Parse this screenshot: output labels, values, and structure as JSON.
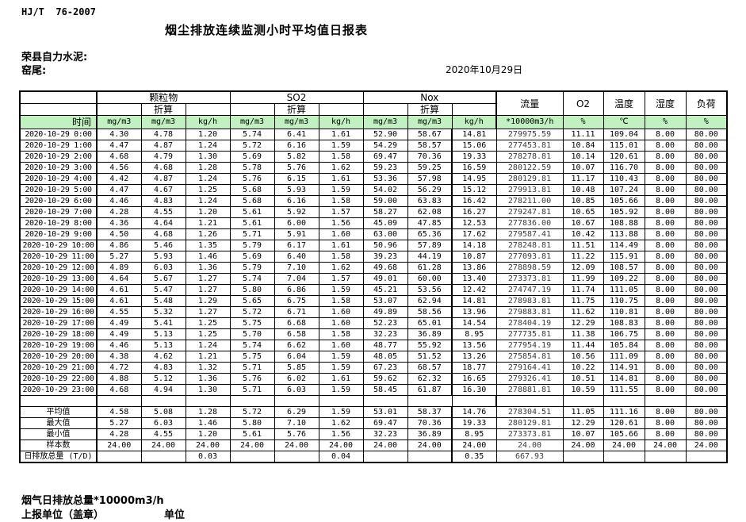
{
  "page": {
    "standard_code": "HJ/T  76-2007",
    "title": "烟尘排放连续监测小时平均值日报表",
    "company": "荣县自力水泥:",
    "location": "窑尾:",
    "date": "2020年10月29日"
  },
  "colors": {
    "header_green": "#c1f0c1",
    "border": "#000000"
  },
  "table": {
    "time_label": "时间",
    "converted_label": "折算",
    "groups": [
      {
        "label": "颗粒物"
      },
      {
        "label": "SO2"
      },
      {
        "label": "Nox"
      }
    ],
    "flow_label": "流量",
    "o2_label": "O2",
    "temp_label": "温度",
    "humidity_label": "湿度",
    "load_label": "负荷",
    "units": {
      "mgm3": "mg/m3",
      "kgh": "kg/h",
      "flow": "*10000m3/h",
      "percent": "%",
      "celsius": "℃"
    },
    "rows": [
      {
        "time": "2020-10-29  0:00",
        "values": [
          "4.30",
          "4.78",
          "1.20",
          "5.74",
          "6.41",
          "1.61",
          "52.90",
          "58.67",
          "14.81",
          "279975.59",
          "11.11",
          "109.04",
          "8.00",
          "80.00"
        ]
      },
      {
        "time": "2020-10-29  1:00",
        "values": [
          "4.47",
          "4.87",
          "1.24",
          "5.72",
          "6.16",
          "1.59",
          "54.29",
          "58.57",
          "15.06",
          "277453.81",
          "10.84",
          "115.01",
          "8.00",
          "80.00"
        ]
      },
      {
        "time": "2020-10-29  2:00",
        "values": [
          "4.68",
          "4.79",
          "1.30",
          "5.69",
          "5.82",
          "1.58",
          "69.47",
          "70.36",
          "19.33",
          "278278.81",
          "10.14",
          "120.61",
          "8.00",
          "80.00"
        ]
      },
      {
        "time": "2020-10-29  3:00",
        "values": [
          "4.56",
          "4.68",
          "1.28",
          "5.78",
          "5.76",
          "1.62",
          "59.23",
          "59.25",
          "16.59",
          "280122.59",
          "10.07",
          "116.70",
          "8.00",
          "80.00"
        ]
      },
      {
        "time": "2020-10-29  4:00",
        "values": [
          "4.42",
          "4.87",
          "1.24",
          "5.76",
          "6.15",
          "1.61",
          "53.36",
          "57.98",
          "14.95",
          "280129.81",
          "11.17",
          "110.43",
          "8.00",
          "80.00"
        ]
      },
      {
        "time": "2020-10-29  5:00",
        "values": [
          "4.47",
          "4.67",
          "1.25",
          "5.68",
          "5.93",
          "1.59",
          "54.02",
          "56.29",
          "15.12",
          "279913.81",
          "10.48",
          "107.24",
          "8.00",
          "80.00"
        ]
      },
      {
        "time": "2020-10-29  6:00",
        "values": [
          "4.46",
          "4.83",
          "1.24",
          "5.68",
          "6.16",
          "1.58",
          "59.00",
          "63.83",
          "16.42",
          "278211.00",
          "10.85",
          "105.66",
          "8.00",
          "80.00"
        ]
      },
      {
        "time": "2020-10-29  7:00",
        "values": [
          "4.28",
          "4.55",
          "1.20",
          "5.61",
          "5.92",
          "1.57",
          "58.27",
          "62.08",
          "16.27",
          "279247.81",
          "10.65",
          "105.92",
          "8.00",
          "80.00"
        ]
      },
      {
        "time": "2020-10-29  8:00",
        "values": [
          "4.36",
          "4.64",
          "1.21",
          "5.61",
          "6.00",
          "1.56",
          "45.09",
          "47.85",
          "12.53",
          "277836.00",
          "10.67",
          "108.88",
          "8.00",
          "80.00"
        ]
      },
      {
        "time": "2020-10-29  9:00",
        "values": [
          "4.50",
          "4.68",
          "1.26",
          "5.71",
          "5.91",
          "1.60",
          "63.00",
          "65.36",
          "17.62",
          "279587.41",
          "10.42",
          "113.88",
          "8.00",
          "80.00"
        ]
      },
      {
        "time": "2020-10-29 10:00",
        "values": [
          "4.86",
          "5.46",
          "1.35",
          "5.79",
          "6.17",
          "1.61",
          "50.96",
          "57.89",
          "14.18",
          "278248.81",
          "11.51",
          "114.49",
          "8.00",
          "80.00"
        ]
      },
      {
        "time": "2020-10-29 11:00",
        "values": [
          "5.27",
          "5.93",
          "1.46",
          "5.69",
          "6.40",
          "1.58",
          "39.23",
          "44.19",
          "10.87",
          "277093.81",
          "11.22",
          "115.91",
          "8.00",
          "80.00"
        ]
      },
      {
        "time": "2020-10-29 12:00",
        "values": [
          "4.89",
          "6.03",
          "1.36",
          "5.79",
          "7.10",
          "1.62",
          "49.68",
          "61.28",
          "13.86",
          "278898.59",
          "12.09",
          "108.57",
          "8.00",
          "80.00"
        ]
      },
      {
        "time": "2020-10-29 13:00",
        "values": [
          "4.64",
          "5.67",
          "1.27",
          "5.74",
          "7.04",
          "1.57",
          "49.01",
          "60.00",
          "13.40",
          "273373.81",
          "11.99",
          "109.22",
          "8.00",
          "80.00"
        ]
      },
      {
        "time": "2020-10-29 14:00",
        "values": [
          "4.61",
          "5.47",
          "1.27",
          "5.80",
          "6.86",
          "1.59",
          "45.21",
          "53.56",
          "12.42",
          "274747.19",
          "11.74",
          "111.05",
          "8.00",
          "80.00"
        ]
      },
      {
        "time": "2020-10-29 15:00",
        "values": [
          "4.61",
          "5.48",
          "1.29",
          "5.65",
          "6.75",
          "1.58",
          "53.07",
          "62.94",
          "14.81",
          "278983.81",
          "11.75",
          "110.75",
          "8.00",
          "80.00"
        ]
      },
      {
        "time": "2020-10-29 16:00",
        "values": [
          "4.55",
          "5.32",
          "1.27",
          "5.72",
          "6.71",
          "1.60",
          "49.89",
          "58.56",
          "13.96",
          "279883.81",
          "11.62",
          "110.81",
          "8.00",
          "80.00"
        ]
      },
      {
        "time": "2020-10-29 17:00",
        "values": [
          "4.49",
          "5.41",
          "1.25",
          "5.75",
          "6.68",
          "1.60",
          "52.23",
          "65.01",
          "14.54",
          "278404.19",
          "12.29",
          "108.83",
          "8.00",
          "80.00"
        ]
      },
      {
        "time": "2020-10-29 18:00",
        "values": [
          "4.49",
          "5.13",
          "1.25",
          "5.70",
          "6.58",
          "1.58",
          "32.23",
          "36.89",
          "8.95",
          "277735.81",
          "11.38",
          "106.75",
          "8.00",
          "80.00"
        ]
      },
      {
        "time": "2020-10-29 19:00",
        "values": [
          "4.46",
          "5.13",
          "1.24",
          "5.74",
          "6.62",
          "1.60",
          "48.77",
          "55.92",
          "13.56",
          "277954.19",
          "11.44",
          "105.84",
          "8.00",
          "80.00"
        ]
      },
      {
        "time": "2020-10-29 20:00",
        "values": [
          "4.38",
          "4.62",
          "1.21",
          "5.75",
          "6.04",
          "1.59",
          "48.05",
          "51.52",
          "13.26",
          "275854.81",
          "10.56",
          "111.09",
          "8.00",
          "80.00"
        ]
      },
      {
        "time": "2020-10-29 21:00",
        "values": [
          "4.72",
          "4.83",
          "1.32",
          "5.71",
          "5.85",
          "1.59",
          "67.23",
          "68.57",
          "18.77",
          "279164.41",
          "10.22",
          "114.91",
          "8.00",
          "80.00"
        ]
      },
      {
        "time": "2020-10-29 22:00",
        "values": [
          "4.88",
          "5.12",
          "1.36",
          "5.76",
          "6.02",
          "1.61",
          "59.62",
          "62.32",
          "16.65",
          "279326.41",
          "10.51",
          "114.81",
          "8.00",
          "80.00"
        ]
      },
      {
        "time": "2020-10-29 23:00",
        "values": [
          "4.68",
          "4.94",
          "1.30",
          "5.71",
          "6.03",
          "1.59",
          "58.45",
          "61.87",
          "16.30",
          "278881.81",
          "10.59",
          "111.55",
          "8.00",
          "80.00"
        ]
      }
    ],
    "summary": [
      {
        "label": "平均值",
        "values": [
          "4.58",
          "5.08",
          "1.28",
          "5.72",
          "6.29",
          "1.59",
          "53.01",
          "58.37",
          "14.76",
          "278304.51",
          "11.05",
          "111.16",
          "8.00",
          "80.00"
        ]
      },
      {
        "label": "最大值",
        "values": [
          "5.27",
          "6.03",
          "1.46",
          "5.80",
          "7.10",
          "1.62",
          "69.47",
          "70.36",
          "19.33",
          "280129.81",
          "12.29",
          "120.61",
          "8.00",
          "80.00"
        ]
      },
      {
        "label": "最小值",
        "values": [
          "4.28",
          "4.55",
          "1.20",
          "5.61",
          "5.76",
          "1.56",
          "32.23",
          "36.89",
          "8.95",
          "273373.81",
          "10.07",
          "105.66",
          "8.00",
          "80.00"
        ]
      },
      {
        "label": "样本数",
        "values": [
          "24.00",
          "24.00",
          "24.00",
          "24.00",
          "24.00",
          "24.00",
          "24.00",
          "24.00",
          "24.00",
          "24.00",
          "24.00",
          "24.00",
          "24.00",
          "24.00"
        ]
      },
      {
        "label": "日排放总量 (T/D)",
        "values": [
          "",
          "",
          "0.03",
          "",
          "",
          "0.04",
          "",
          "",
          "0.35",
          "667.93",
          "",
          "",
          "",
          ""
        ],
        "is_total": true
      }
    ]
  },
  "footer": {
    "flue_gas_total": "烟气日排放总量*10000m3/h",
    "report_unit": "上报单位（盖章）",
    "unit": "单位"
  }
}
